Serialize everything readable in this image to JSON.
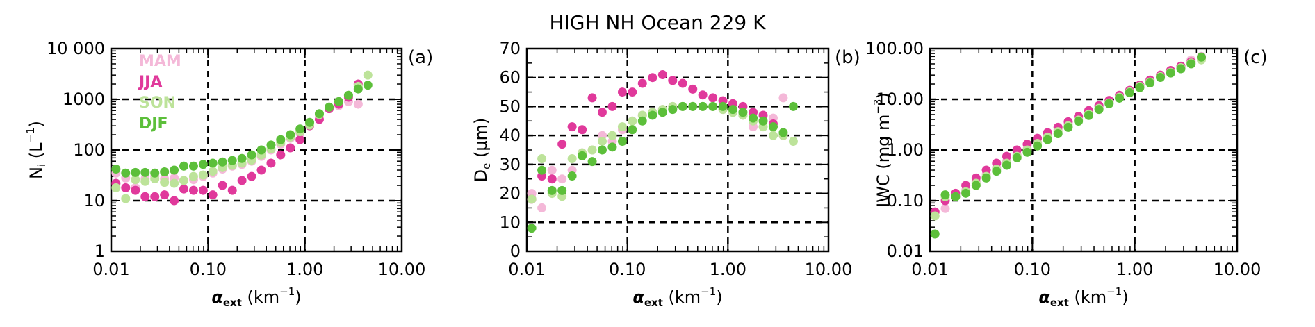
{
  "figure_title": "HIGH NH Ocean 229 K",
  "legend": [
    {
      "label": "MAM",
      "color": "#f4b8d8"
    },
    {
      "label": "JJA",
      "color": "#e0399b"
    },
    {
      "label": "SON",
      "color": "#bde39a"
    },
    {
      "label": "DJF",
      "color": "#5cbf3a"
    }
  ],
  "chart_data": [
    {
      "type": "scatter",
      "panel_label": "(a)",
      "xscale": "log",
      "yscale": "log",
      "xlim": [
        0.01,
        10
      ],
      "ylim": [
        1,
        10000
      ],
      "xticks": [
        0.01,
        0.1,
        1,
        10
      ],
      "xtick_labels": [
        "0.01",
        "0.10",
        "1.00",
        "10.00"
      ],
      "yticks": [
        1,
        10,
        100,
        1000,
        10000
      ],
      "ytick_labels": [
        "1",
        "10",
        "100",
        "1000",
        "10 000"
      ],
      "grid_x": [
        0.1,
        1
      ],
      "grid_y": [
        10,
        100,
        1000
      ],
      "xlabel_main": "α",
      "xlabel_sub": "ext",
      "xlabel_unit": "(km",
      "xlabel_exp": "−1",
      "xlabel_close": ")",
      "ylabel_main": "N",
      "ylabel_sub": "i",
      "ylabel_unit": "(L",
      "ylabel_exp": "−1",
      "ylabel_close": ")",
      "series": [
        {
          "name": "MAM",
          "color": "#f4b8d8",
          "x": [
            0.0112,
            0.0141,
            0.0178,
            0.0224,
            0.0282,
            0.0355,
            0.0447,
            0.0562,
            0.0708,
            0.0891,
            0.112,
            0.141,
            0.178,
            0.224,
            0.282,
            0.355,
            0.447,
            0.562,
            0.708,
            0.891,
            1.12,
            1.41,
            1.78,
            2.24,
            2.82,
            3.55
          ],
          "y": [
            35,
            28,
            18,
            27,
            30,
            27,
            28,
            25,
            26,
            30,
            35,
            42,
            48,
            52,
            60,
            75,
            100,
            130,
            170,
            215,
            300,
            500,
            650,
            750,
            900,
            800
          ]
        },
        {
          "name": "JJA",
          "color": "#e0399b",
          "x": [
            0.0112,
            0.0141,
            0.0178,
            0.0224,
            0.0282,
            0.0355,
            0.0447,
            0.0562,
            0.0708,
            0.0891,
            0.112,
            0.141,
            0.178,
            0.224,
            0.282,
            0.355,
            0.447,
            0.562,
            0.708,
            0.891,
            1.12,
            1.41,
            1.78,
            2.24,
            2.82,
            3.55
          ],
          "y": [
            22,
            18,
            16,
            12,
            12,
            13,
            10,
            17,
            16,
            16,
            13,
            20,
            16,
            25,
            30,
            40,
            55,
            80,
            110,
            160,
            300,
            400,
            650,
            800,
            1100,
            2000
          ]
        },
        {
          "name": "SON",
          "color": "#bde39a",
          "x": [
            0.0112,
            0.0141,
            0.0178,
            0.0224,
            0.0282,
            0.0355,
            0.0447,
            0.0562,
            0.0708,
            0.0891,
            0.112,
            0.141,
            0.178,
            0.224,
            0.282,
            0.355,
            0.447,
            0.562,
            0.708,
            0.891,
            1.12,
            1.41,
            1.78,
            2.24,
            2.82,
            3.55,
            4.47
          ],
          "y": [
            18,
            11,
            26,
            24,
            27,
            23,
            22,
            25,
            30,
            32,
            38,
            45,
            50,
            55,
            63,
            80,
            105,
            140,
            180,
            230,
            310,
            500,
            700,
            900,
            1200,
            1800,
            3000
          ]
        },
        {
          "name": "DJF",
          "color": "#5cbf3a",
          "x": [
            0.0112,
            0.0141,
            0.0178,
            0.0224,
            0.0282,
            0.0355,
            0.0447,
            0.0562,
            0.0708,
            0.0891,
            0.112,
            0.141,
            0.178,
            0.224,
            0.282,
            0.355,
            0.447,
            0.562,
            0.708,
            0.891,
            1.12,
            1.41,
            1.78,
            2.24,
            2.82,
            3.55,
            4.47
          ],
          "y": [
            42,
            35,
            36,
            36,
            35,
            37,
            40,
            48,
            48,
            52,
            55,
            58,
            62,
            68,
            80,
            100,
            125,
            160,
            200,
            260,
            350,
            520,
            700,
            900,
            1200,
            1600,
            1900
          ]
        }
      ]
    },
    {
      "type": "scatter",
      "panel_label": "(b)",
      "xscale": "log",
      "yscale": "linear",
      "xlim": [
        0.01,
        10
      ],
      "ylim": [
        0,
        70
      ],
      "xticks": [
        0.01,
        0.1,
        1,
        10
      ],
      "xtick_labels": [
        "0.01",
        "0.10",
        "1.00",
        "10.00"
      ],
      "yticks": [
        0,
        10,
        20,
        30,
        40,
        50,
        60,
        70
      ],
      "ytick_labels": [
        "0",
        "10",
        "20",
        "30",
        "40",
        "50",
        "60",
        "70"
      ],
      "grid_x": [
        0.1,
        1
      ],
      "grid_y": [
        10,
        20,
        30,
        40,
        50,
        60
      ],
      "xlabel_main": "α",
      "xlabel_sub": "ext",
      "xlabel_unit": "(km",
      "xlabel_exp": "−1",
      "xlabel_close": ")",
      "ylabel_main": "D",
      "ylabel_sub": "e",
      "ylabel_unit": "(μm)",
      "series": [
        {
          "name": "MAM",
          "color": "#f4b8d8",
          "x": [
            0.0112,
            0.0141,
            0.0178,
            0.0224,
            0.0282,
            0.0355,
            0.0447,
            0.0562,
            0.0708,
            0.0891,
            0.112,
            0.141,
            0.178,
            0.224,
            0.282,
            0.355,
            0.447,
            0.562,
            0.708,
            0.891,
            1.12,
            1.41,
            1.78,
            2.24,
            2.82,
            3.55
          ],
          "y": [
            20,
            15,
            28,
            25,
            28,
            34,
            35,
            40,
            38,
            42,
            45,
            47,
            48,
            49,
            50,
            50,
            50,
            50,
            50,
            49,
            48,
            47,
            43,
            45,
            46,
            53
          ]
        },
        {
          "name": "JJA",
          "color": "#e0399b",
          "x": [
            0.0112,
            0.0141,
            0.0178,
            0.0224,
            0.0282,
            0.0355,
            0.0447,
            0.0562,
            0.0708,
            0.0891,
            0.112,
            0.141,
            0.178,
            0.224,
            0.282,
            0.355,
            0.447,
            0.562,
            0.708,
            0.891,
            1.12,
            1.41,
            1.78,
            2.24,
            2.82,
            3.55
          ],
          "y": [
            18,
            26,
            25,
            37,
            43,
            42,
            53,
            48,
            50,
            55,
            55,
            58,
            60,
            61,
            59,
            58,
            56,
            54,
            53,
            52,
            51,
            50,
            48,
            47,
            44,
            40
          ]
        },
        {
          "name": "SON",
          "color": "#bde39a",
          "x": [
            0.0112,
            0.0141,
            0.0178,
            0.0224,
            0.0282,
            0.0355,
            0.0447,
            0.0562,
            0.0708,
            0.0891,
            0.112,
            0.141,
            0.178,
            0.224,
            0.282,
            0.355,
            0.447,
            0.562,
            0.708,
            0.891,
            1.12,
            1.41,
            1.78,
            2.24,
            2.82,
            3.55,
            4.47
          ],
          "y": [
            18,
            32,
            20,
            19,
            32,
            34,
            35,
            38,
            40,
            43,
            45,
            47,
            48,
            49,
            50,
            50,
            50,
            50,
            50,
            49,
            48,
            47,
            45,
            43,
            40,
            40,
            38
          ]
        },
        {
          "name": "DJF",
          "color": "#5cbf3a",
          "x": [
            0.0112,
            0.0141,
            0.0178,
            0.0224,
            0.0282,
            0.0355,
            0.0447,
            0.0562,
            0.0708,
            0.0891,
            0.112,
            0.141,
            0.178,
            0.224,
            0.282,
            0.355,
            0.447,
            0.562,
            0.708,
            0.891,
            1.12,
            1.41,
            1.78,
            2.24,
            2.82,
            3.55,
            4.47
          ],
          "y": [
            8,
            28,
            21,
            21,
            26,
            33,
            31,
            35,
            36,
            38,
            42,
            45,
            47,
            48,
            49,
            50,
            50,
            50,
            50,
            50,
            49,
            48,
            46,
            45,
            43,
            41,
            50
          ]
        }
      ]
    },
    {
      "type": "scatter",
      "panel_label": "(c)",
      "xscale": "log",
      "yscale": "log",
      "xlim": [
        0.01,
        10
      ],
      "ylim": [
        0.01,
        100
      ],
      "xticks": [
        0.01,
        0.1,
        1,
        10
      ],
      "xtick_labels": [
        "0.01",
        "0.10",
        "1.00",
        "10.00"
      ],
      "yticks": [
        0.01,
        0.1,
        1,
        10,
        100
      ],
      "ytick_labels": [
        "0.01",
        "0.10",
        "1.00",
        "10.00",
        "100.00"
      ],
      "grid_x": [
        0.1,
        1
      ],
      "grid_y": [
        0.1,
        1,
        10
      ],
      "xlabel_main": "α",
      "xlabel_sub": "ext",
      "xlabel_unit": "(km",
      "xlabel_exp": "−1",
      "xlabel_close": ")",
      "ylabel_main": "IWC",
      "ylabel_unit": "(mg m",
      "ylabel_exp": "−3",
      "ylabel_close": ")",
      "series": [
        {
          "name": "MAM",
          "color": "#f4b8d8",
          "x": [
            0.0112,
            0.0141,
            0.0178,
            0.0224,
            0.0282,
            0.0355,
            0.0447,
            0.0562,
            0.0708,
            0.0891,
            0.112,
            0.141,
            0.178,
            0.224,
            0.282,
            0.355,
            0.447,
            0.562,
            0.708,
            0.891,
            1.12,
            1.41,
            1.78,
            2.24,
            2.82,
            3.55,
            4.47
          ],
          "y": [
            0.06,
            0.07,
            0.13,
            0.16,
            0.24,
            0.33,
            0.45,
            0.6,
            0.8,
            1.05,
            1.4,
            1.9,
            2.5,
            3.2,
            4.2,
            5.5,
            7,
            9,
            11.5,
            14.5,
            18,
            23,
            28,
            35,
            45,
            60,
            70
          ]
        },
        {
          "name": "JJA",
          "color": "#e0399b",
          "x": [
            0.0112,
            0.0141,
            0.0178,
            0.0224,
            0.0282,
            0.0355,
            0.0447,
            0.0562,
            0.0708,
            0.0891,
            0.112,
            0.141,
            0.178,
            0.224,
            0.282,
            0.355,
            0.447,
            0.562,
            0.708,
            0.891,
            1.12,
            1.41,
            1.78,
            2.24,
            2.82,
            3.55,
            4.47
          ],
          "y": [
            0.06,
            0.1,
            0.14,
            0.2,
            0.28,
            0.4,
            0.55,
            0.75,
            1.0,
            1.3,
            1.7,
            2.2,
            2.8,
            3.6,
            4.6,
            6.0,
            7.5,
            9.5,
            12,
            15,
            19,
            24,
            30,
            37,
            45,
            55,
            65
          ]
        },
        {
          "name": "SON",
          "color": "#bde39a",
          "x": [
            0.0112,
            0.0141,
            0.0178,
            0.0224,
            0.0282,
            0.0355,
            0.0447,
            0.0562,
            0.0708,
            0.0891,
            0.112,
            0.141,
            0.178,
            0.224,
            0.282,
            0.355,
            0.447,
            0.562,
            0.708,
            0.891,
            1.12,
            1.41,
            1.78,
            2.24,
            2.82,
            3.55,
            4.47
          ],
          "y": [
            0.05,
            0.12,
            0.12,
            0.15,
            0.22,
            0.3,
            0.42,
            0.55,
            0.75,
            1.0,
            1.35,
            1.8,
            2.3,
            3.0,
            3.9,
            5.1,
            6.6,
            8.5,
            11,
            14,
            18,
            22,
            28,
            34,
            42,
            52,
            60
          ]
        },
        {
          "name": "DJF",
          "color": "#5cbf3a",
          "x": [
            0.0112,
            0.0141,
            0.0178,
            0.0224,
            0.0282,
            0.0355,
            0.0447,
            0.0562,
            0.0708,
            0.0891,
            0.112,
            0.141,
            0.178,
            0.224,
            0.282,
            0.355,
            0.447,
            0.562,
            0.708,
            0.891,
            1.12,
            1.41,
            1.78,
            2.24,
            2.82,
            3.55,
            4.47
          ],
          "y": [
            0.022,
            0.13,
            0.12,
            0.14,
            0.2,
            0.28,
            0.38,
            0.5,
            0.7,
            0.9,
            1.2,
            1.6,
            2.1,
            2.8,
            3.7,
            4.8,
            6.3,
            8.2,
            10.5,
            13.5,
            17,
            21,
            27,
            33,
            40,
            50,
            68
          ]
        }
      ]
    }
  ]
}
